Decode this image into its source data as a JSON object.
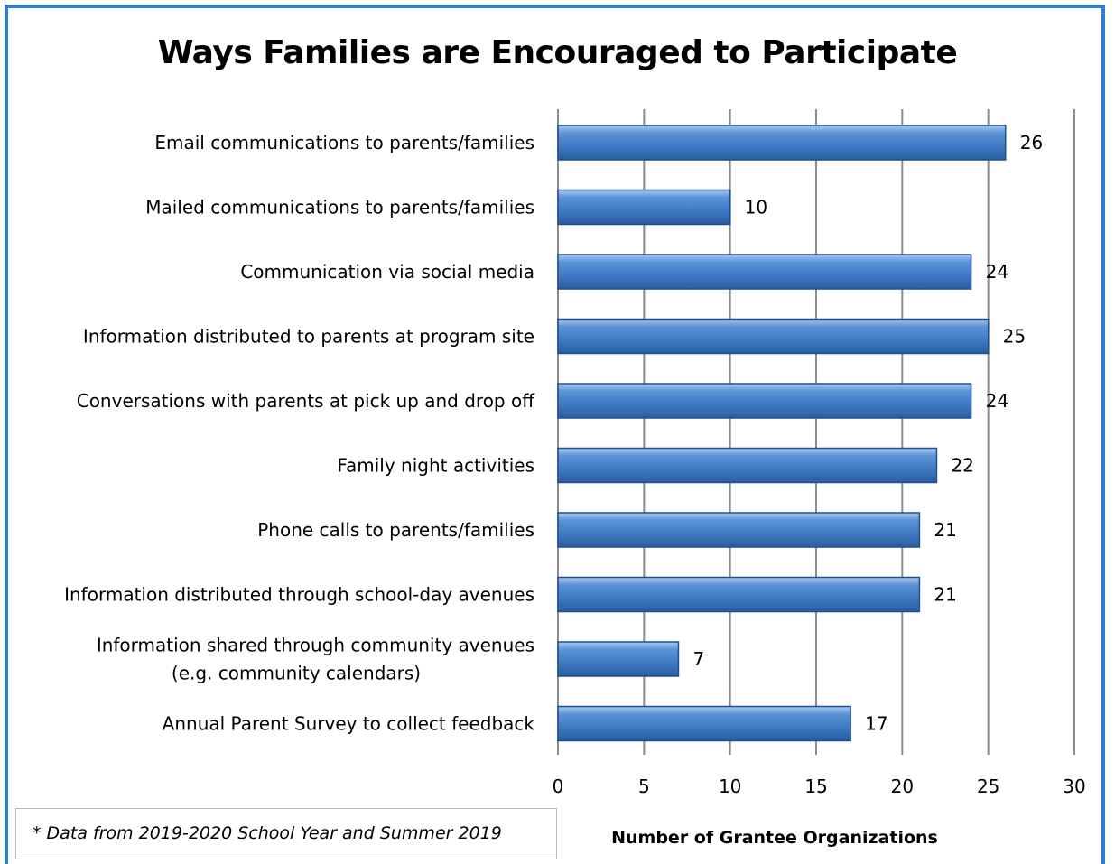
{
  "chart_data": {
    "type": "bar",
    "orientation": "horizontal",
    "title": "Ways Families are Encouraged to Participate",
    "xlabel": "Number of Grantee Organizations",
    "ylabel": "",
    "categories": [
      [
        "Email communications to parents/families"
      ],
      [
        "Mailed communications to parents/families"
      ],
      [
        "Communication via social media"
      ],
      [
        "Information distributed to parents at program site"
      ],
      [
        "Conversations with parents at pick up and drop off"
      ],
      [
        "Family night activities"
      ],
      [
        "Phone calls to parents/families"
      ],
      [
        "Information distributed through school-day avenues"
      ],
      [
        "Information shared through community avenues",
        "(e.g. community calendars)"
      ],
      [
        "Annual Parent Survey to collect feedback"
      ]
    ],
    "values": [
      26,
      10,
      24,
      25,
      24,
      22,
      21,
      21,
      7,
      17
    ],
    "xlim": [
      0,
      30
    ],
    "xticks": [
      0,
      5,
      10,
      15,
      20,
      25,
      30
    ],
    "grid": "vertical",
    "bar_color": "#4a86cc",
    "bar_edge_color": "#1f4f8f",
    "frame_color": "#2e7fd1",
    "note": "* Data from 2019-2020 School Year and Summer 2019"
  }
}
